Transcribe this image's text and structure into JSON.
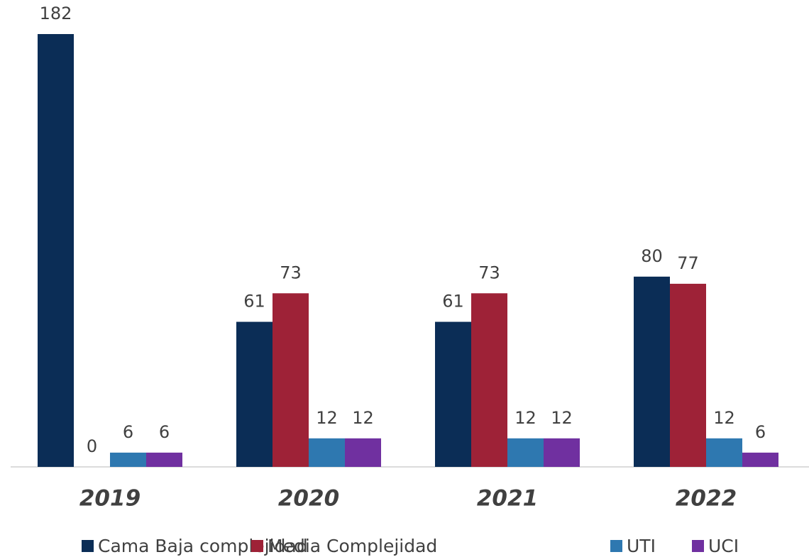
{
  "chart_data": {
    "type": "bar",
    "categories": [
      "2019",
      "2020",
      "2021",
      "2022"
    ],
    "series": [
      {
        "name": "Cama Baja complejidad",
        "color": "#0b2d56",
        "values": [
          182,
          61,
          61,
          80
        ]
      },
      {
        "name": "Media Complejidad",
        "color": "#9e2237",
        "values": [
          0,
          73,
          73,
          77
        ]
      },
      {
        "name": "UTI",
        "color": "#2e78b0",
        "values": [
          6,
          12,
          12,
          12
        ]
      },
      {
        "name": "UCI",
        "color": "#7030a0",
        "values": [
          6,
          12,
          12,
          6
        ]
      }
    ],
    "ylim": [
      0,
      182
    ],
    "legend": "bottom"
  }
}
